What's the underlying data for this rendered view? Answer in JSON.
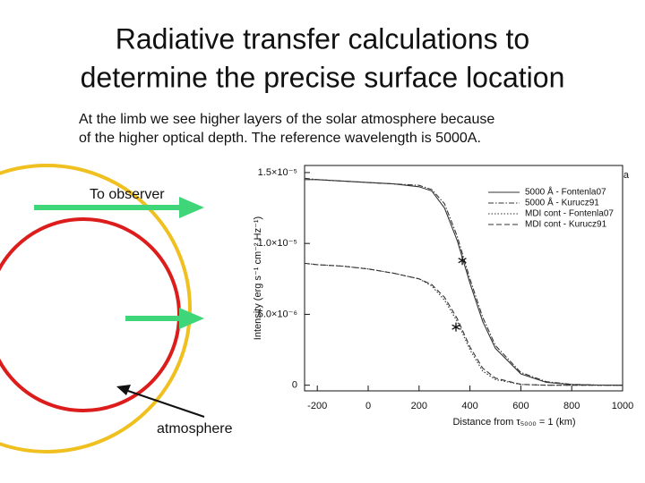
{
  "title_lines": [
    "Radiative transfer calculations to",
    "determine the precise surface location"
  ],
  "body_lines": [
    "At the limb we see higher layers of the solar atmosphere because",
    "of the higher optical depth. The reference wavelength is 5000A."
  ],
  "diagram": {
    "labels": [
      "To observer",
      "atmosphere"
    ]
  },
  "chart_data": {
    "type": "line",
    "panel_label": "a",
    "x_label": "Distance from τ₅₀₀₀ = 1 (km)",
    "y_label": "Intensity (erg s⁻¹ cm⁻² Hz⁻¹)",
    "x": [
      -250,
      -200,
      -100,
      0,
      100,
      200,
      250,
      300,
      350,
      400,
      450,
      500,
      600,
      700,
      800,
      900,
      1000
    ],
    "xlim": [
      -250,
      1000
    ],
    "xticks": [
      -200,
      0,
      200,
      400,
      600,
      800,
      1000
    ],
    "ylim": [
      -4e-07,
      1.55e-05
    ],
    "yticks": [
      0,
      {
        "value": 5e-06,
        "label": "5.0×10⁻⁶"
      },
      {
        "value": 1e-05,
        "label": "1.0×10⁻⁵"
      },
      {
        "value": 1.5e-05,
        "label": "1.5×10⁻⁵"
      }
    ],
    "grid": false,
    "legend": "upper right",
    "series": [
      {
        "name": "5000 Å - Fontenla07",
        "color": "#333333",
        "dash": "solid",
        "values": [
          1.45e-05,
          1.45e-05,
          1.44e-05,
          1.43e-05,
          1.42e-05,
          1.4e-05,
          1.37e-05,
          1.25e-05,
          1.02e-05,
          7.2e-06,
          4.5e-06,
          2.6e-06,
          8e-07,
          2e-07,
          5e-08,
          1e-08,
          0
        ]
      },
      {
        "name": "5000 Å - Kurucz91",
        "color": "#333333",
        "dash": "dashdot",
        "values": [
          1.46e-05,
          1.45e-05,
          1.44e-05,
          1.43e-05,
          1.42e-05,
          1.41e-05,
          1.38e-05,
          1.28e-05,
          1.05e-05,
          7.5e-06,
          4.8e-06,
          2.8e-06,
          9e-07,
          2.5e-07,
          6e-08,
          1e-08,
          0
        ]
      },
      {
        "name": "MDI cont - Fontenla07",
        "color": "#333333",
        "dash": "dotted",
        "values": [
          8.6e-06,
          8.5e-06,
          8.4e-06,
          8.2e-06,
          7.9e-06,
          7.5e-06,
          7e-06,
          6e-06,
          4.5e-06,
          2.5e-06,
          1e-06,
          4e-07,
          5e-08,
          0,
          0,
          0,
          0
        ]
      },
      {
        "name": "MDI cont - Kurucz91",
        "color": "#333333",
        "dash": "dashed",
        "values": [
          8.6e-06,
          8.5e-06,
          8.4e-06,
          8.2e-06,
          7.9e-06,
          7.5e-06,
          7.1e-06,
          6.2e-06,
          4.7e-06,
          2.7e-06,
          1.2e-06,
          5e-07,
          6e-08,
          0,
          0,
          0,
          0
        ]
      }
    ],
    "markers": {
      "x": [
        370,
        345
      ],
      "y": [
        8.8e-06,
        4.1e-06
      ]
    }
  }
}
